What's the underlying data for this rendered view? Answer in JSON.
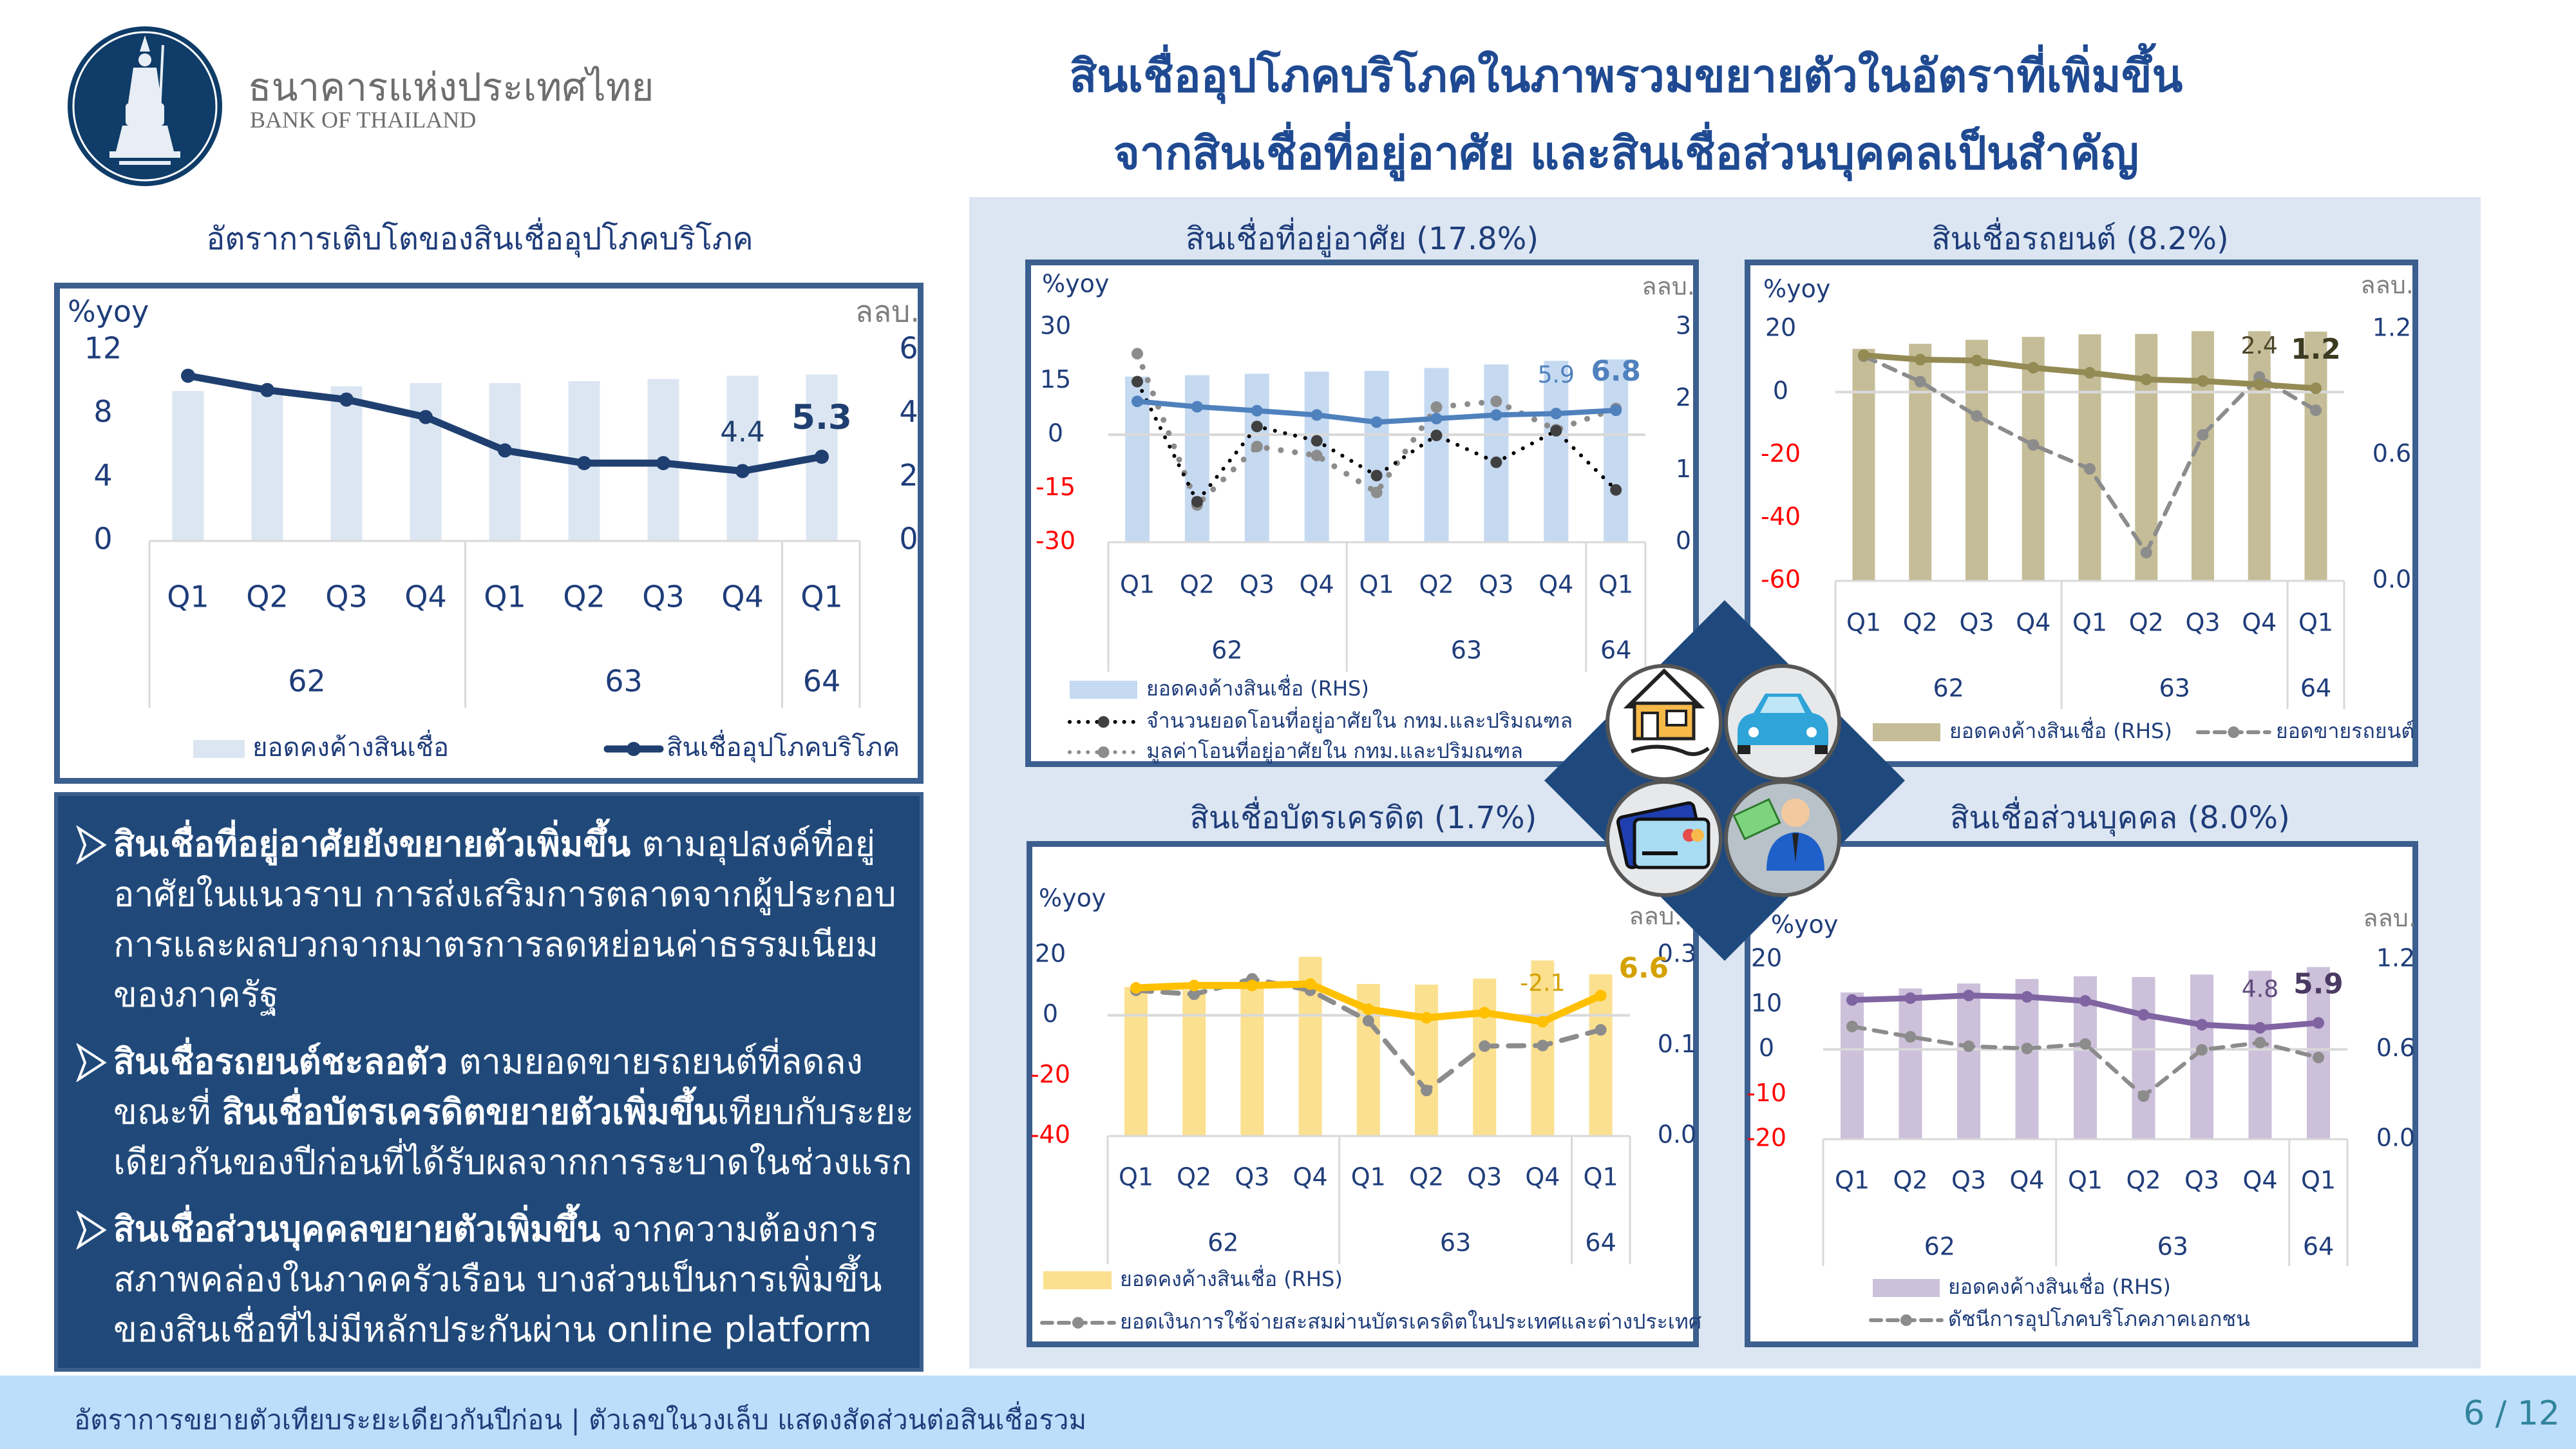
{
  "header": {
    "logo_text_th": "ธนาคารแห่งประเทศไทย",
    "logo_text_en": "BANK OF THAILAND",
    "title_line1": "สินเชื่ออุปโภคบริโภคในภาพรวมขยายตัวในอัตราที่เพิ่มขึ้น",
    "title_line2": "จากสินเชื่อที่อยู่อาศัย และสินเชื่อส่วนบุคคลเป็นสำคัญ"
  },
  "summary": {
    "bullets": [
      {
        "parts": [
          {
            "text": "สินเชื่อที่อยู่อาศัยยังขยายตัวเพิ่มขึ้น",
            "bold": true
          },
          {
            "text": " ตามอุปสงค์ที่อยู่อาศัยในแนวราบ การส่งเสริมการตลาดจากผู้ประกอบการและผลบวกจากมาตรการลดหย่อนค่าธรรมเนียมของภาครัฐ",
            "bold": false
          }
        ]
      },
      {
        "parts": [
          {
            "text": "สินเชื่อรถยนต์ชะลอตัว",
            "bold": true
          },
          {
            "text": " ตามยอดขายรถยนต์ที่ลดลง ขณะที่ ",
            "bold": false
          },
          {
            "text": "สินเชื่อบัตรเครดิตขยายตัวเพิ่มขึ้น",
            "bold": true
          },
          {
            "text": "เทียบกับระยะเดียวกันของปีก่อนที่ได้รับผลจากการระบาดในช่วงแรก",
            "bold": false
          }
        ]
      },
      {
        "parts": [
          {
            "text": "สินเชื่อส่วนบุคคลขยายตัวเพิ่มขึ้น",
            "bold": true
          },
          {
            "text": " จากความต้องการสภาพคล่องในภาคครัวเรือน บางส่วนเป็นการเพิ่มขึ้นของสินเชื่อที่ไม่มีหลักประกันผ่าน online platform",
            "bold": false
          }
        ]
      }
    ]
  },
  "center_icons": [
    "house-icon",
    "car-icon",
    "credit-card-icon",
    "money-person-icon"
  ],
  "colors": {
    "navy": "#1f497d",
    "panel_bg": "#dce6f2",
    "footer_bg": "#bddefb",
    "negative_tick": "#ff0000"
  },
  "footer": {
    "note": "อัตราการขยายตัวเทียบระยะเดียวกันปีก่อน | ตัวเลขในวงเล็บ แสดงสัดส่วนต่อสินเชื่อรวม",
    "page": "6 / 12"
  },
  "chart_data": [
    {
      "id": "main",
      "type": "bar+line",
      "title": "อัตราการเติบโตของสินเชื่ออุปโภคบริโภค",
      "left_unit": "%yoy",
      "right_unit": "ลลบ.",
      "categories": [
        "Q1",
        "Q2",
        "Q3",
        "Q4",
        "Q1",
        "Q2",
        "Q3",
        "Q4",
        "Q1"
      ],
      "groups": [
        {
          "label": "62",
          "span": 4
        },
        {
          "label": "63",
          "span": 4
        },
        {
          "label": "64",
          "span": 1
        }
      ],
      "ylim": [
        0,
        12
      ],
      "yticks": [
        0,
        4,
        8,
        12
      ],
      "ytick_labels": [
        "0",
        "4",
        "8",
        "12"
      ],
      "y2lim": [
        0,
        6
      ],
      "y2ticks": [
        0,
        2,
        4,
        6
      ],
      "y2tick_labels": [
        "0",
        "2",
        "4",
        "6"
      ],
      "zero_line": false,
      "bars": {
        "name": "ยอดคงค้างสินเชื่อ",
        "axis": "right",
        "color": "#dce6f2",
        "values": [
          4.72,
          4.8,
          4.87,
          4.97,
          4.97,
          5.03,
          5.1,
          5.2,
          5.24
        ]
      },
      "lines": [
        {
          "name": "สินเชื่ออุปโภคบริโภค",
          "axis": "left",
          "color": "#1f3f70",
          "style": "solid",
          "values": [
            10.4,
            9.5,
            8.9,
            7.8,
            5.7,
            4.9,
            4.9,
            4.4,
            5.3
          ],
          "labels": [
            {
              "index": 7,
              "text": "4.4",
              "bold": false,
              "position": "above"
            },
            {
              "index": 8,
              "text": "5.3",
              "bold": true,
              "position": "above"
            }
          ]
        }
      ],
      "legend": "bottom"
    },
    {
      "id": "house",
      "type": "bar+line",
      "title": "สินเชื่อที่อยู่อาศัย (17.8%)",
      "left_unit": "%yoy",
      "right_unit": "ลลบ.",
      "categories": [
        "Q1",
        "Q2",
        "Q3",
        "Q4",
        "Q1",
        "Q2",
        "Q3",
        "Q4",
        "Q1"
      ],
      "groups": [
        {
          "label": "62",
          "span": 4
        },
        {
          "label": "63",
          "span": 4
        },
        {
          "label": "64",
          "span": 1
        }
      ],
      "ylim": [
        -30,
        30
      ],
      "yticks": [
        -30,
        -15,
        0,
        15,
        30
      ],
      "ytick_labels": [
        "-30",
        "-15",
        "0",
        "15",
        "30"
      ],
      "y2lim": [
        0,
        3
      ],
      "y2ticks": [
        0,
        1,
        2,
        3
      ],
      "y2tick_labels": [
        "0",
        "1",
        "2",
        "3"
      ],
      "zero_line": true,
      "bars": {
        "name": "ยอดคงค้างสินเชื่อ (RHS)",
        "axis": "right",
        "color": "#c5d9f1",
        "values": [
          2.31,
          2.33,
          2.35,
          2.38,
          2.39,
          2.43,
          2.48,
          2.53,
          2.55
        ]
      },
      "lines": [
        {
          "name": "",
          "axis": "left",
          "color": "#4f81bd",
          "style": "solid",
          "values": [
            9.3,
            7.8,
            6.7,
            5.5,
            3.5,
            4.5,
            5.5,
            5.9,
            6.8
          ],
          "labels": [
            {
              "index": 7,
              "text": "5.9",
              "bold": false,
              "position": "above"
            },
            {
              "index": 8,
              "text": "6.8",
              "bold": true,
              "position": "above"
            }
          ]
        },
        {
          "name": "จำนวนยอดโอนที่อยู่อาศัยใน กทม.และปริมณฑล",
          "axis": "left",
          "color": "#000000",
          "style": "dotted",
          "values": [
            14.8,
            -18.7,
            2.3,
            -1.7,
            -11.4,
            -0.2,
            -7.7,
            1.1,
            -15.4
          ],
          "labels": []
        },
        {
          "name": "มูลค่าโอนที่อยู่อาศัยใน กทม.และปริมณฑล",
          "axis": "left",
          "color": "#8c8c8c",
          "style": "dotted-grey",
          "values": [
            22.6,
            -19.6,
            -3.3,
            -5.8,
            -16.1,
            7.7,
            9.3,
            1.4,
            7.3
          ],
          "labels": []
        }
      ],
      "legend": "bottom"
    },
    {
      "id": "auto",
      "type": "bar+line",
      "title": "สินเชื่อรถยนต์ (8.2%)",
      "left_unit": "%yoy",
      "right_unit": "ลลบ.",
      "categories": [
        "Q1",
        "Q2",
        "Q3",
        "Q4",
        "Q1",
        "Q2",
        "Q3",
        "Q4",
        "Q1"
      ],
      "groups": [
        {
          "label": "62",
          "span": 4
        },
        {
          "label": "63",
          "span": 4
        },
        {
          "label": "64",
          "span": 1
        }
      ],
      "ylim": [
        -60,
        20
      ],
      "yticks": [
        -60,
        -40,
        -20,
        0,
        20
      ],
      "ytick_labels": [
        "-60",
        "-40",
        "-20",
        "0",
        "20"
      ],
      "y2lim": [
        0,
        1.2
      ],
      "y2ticks": [
        0,
        0.6,
        1.2
      ],
      "y2tick_labels": [
        "0.0",
        "0.6",
        "1.2"
      ],
      "zero_line": true,
      "bars": {
        "name": "ยอดคงค้างสินเชื่อ (RHS)",
        "axis": "right",
        "color": "#c4bd97",
        "values": [
          1.106,
          1.13,
          1.149,
          1.163,
          1.175,
          1.177,
          1.19,
          1.19,
          1.188
        ]
      },
      "lines": [
        {
          "name": "",
          "axis": "left",
          "color": "#948a54",
          "style": "solid",
          "values": [
            11.7,
            10.3,
            10.0,
            7.7,
            6.1,
            4.0,
            3.5,
            2.4,
            1.2
          ],
          "labels": [
            {
              "index": 7,
              "text": "2.4",
              "bold": false,
              "position": "above",
              "color": "#4a452a"
            },
            {
              "index": 8,
              "text": "1.2",
              "bold": true,
              "position": "above",
              "color": "#3d3a22"
            }
          ]
        },
        {
          "name": "ยอดขายรถยนต์",
          "axis": "left",
          "color": "#8c8c8c",
          "style": "dashed",
          "values": [
            11.4,
            3.3,
            -7.6,
            -16.8,
            -24.4,
            -51.0,
            -13.6,
            4.8,
            -5.8
          ],
          "labels": []
        }
      ],
      "legend": "bottom"
    },
    {
      "id": "card",
      "type": "bar+line",
      "title": "สินเชื่อบัตรเครดิต (1.7%)",
      "left_unit": "%yoy",
      "right_unit": "ลลบ.",
      "categories": [
        "Q1",
        "Q2",
        "Q3",
        "Q4",
        "Q1",
        "Q2",
        "Q3",
        "Q4",
        "Q1"
      ],
      "groups": [
        {
          "label": "62",
          "span": 4
        },
        {
          "label": "63",
          "span": 4
        },
        {
          "label": "64",
          "span": 1
        }
      ],
      "ylim": [
        -40,
        20
      ],
      "yticks": [
        -40,
        -20,
        0,
        20
      ],
      "ytick_labels": [
        "-40",
        "-20",
        "0",
        "20"
      ],
      "y2lim": [
        0,
        0.3
      ],
      "y2ticks": [
        0,
        0.15,
        0.3
      ],
      "y2tick_labels": [
        "0.0",
        "0.1",
        "0.3"
      ],
      "zero_line": true,
      "bars": {
        "name": "ยอดคงค้างสินเชื่อ (RHS)",
        "axis": "right",
        "color": "#fbe08f",
        "values": [
          0.247,
          0.242,
          0.245,
          0.297,
          0.252,
          0.251,
          0.261,
          0.291,
          0.268
        ]
      },
      "lines": [
        {
          "name": "",
          "axis": "left",
          "color": "#ffc000",
          "style": "solid",
          "values": [
            9.1,
            9.9,
            9.9,
            10.4,
            2.0,
            -0.8,
            0.9,
            -2.1,
            6.6
          ],
          "labels": [
            {
              "index": 7,
              "text": "-2.1",
              "bold": false,
              "position": "above",
              "color": "#d4a100"
            },
            {
              "index": 8,
              "text": "6.6",
              "bold": true,
              "position": "right",
              "color": "#d4a100"
            }
          ]
        },
        {
          "name": "ยอดเงินการใช้จ่ายสะสมผ่านบัตรเครดิตในประเทศและต่างประเทศ",
          "axis": "left",
          "color": "#8c8c8c",
          "style": "dashed",
          "values": [
            8.3,
            7.0,
            12.1,
            8.3,
            -1.8,
            -24.9,
            -10.2,
            -10.0,
            -4.8
          ],
          "labels": []
        }
      ],
      "legend": "bottom"
    },
    {
      "id": "pers",
      "type": "bar+line",
      "title": "สินเชื่อส่วนบุคคล (8.0%)",
      "left_unit": "%yoy",
      "right_unit": "ลลบ.",
      "categories": [
        "Q1",
        "Q2",
        "Q3",
        "Q4",
        "Q1",
        "Q2",
        "Q3",
        "Q4",
        "Q1"
      ],
      "groups": [
        {
          "label": "62",
          "span": 4
        },
        {
          "label": "63",
          "span": 4
        },
        {
          "label": "64",
          "span": 1
        }
      ],
      "ylim": [
        -20,
        20
      ],
      "yticks": [
        -20,
        -10,
        0,
        10,
        20
      ],
      "ytick_labels": [
        "-20",
        "-10",
        "0",
        "10",
        "20"
      ],
      "y2lim": [
        0,
        1.2
      ],
      "y2ticks": [
        0,
        0.6,
        1.2
      ],
      "y2tick_labels": [
        "0.0",
        "0.6",
        "1.2"
      ],
      "zero_line": true,
      "bars": {
        "name": "ยอดคงค้างสินเชื่อ (RHS)",
        "axis": "right",
        "color": "#ccc0da",
        "values": [
          0.98,
          1.007,
          1.04,
          1.07,
          1.088,
          1.083,
          1.1,
          1.125,
          1.15
        ]
      },
      "lines": [
        {
          "name": "",
          "axis": "left",
          "color": "#8064a2",
          "style": "solid",
          "values": [
            11.0,
            11.4,
            12.0,
            11.7,
            10.8,
            7.7,
            5.5,
            4.8,
            5.9
          ],
          "labels": [
            {
              "index": 7,
              "text": "4.8",
              "bold": false,
              "position": "above",
              "color": "#604a7b"
            },
            {
              "index": 8,
              "text": "5.9",
              "bold": true,
              "position": "above",
              "color": "#4b3a63"
            }
          ]
        },
        {
          "name": "ดัชนีการอุปโภคบริโภคภาคเอกชน",
          "axis": "left",
          "color": "#8c8c8c",
          "style": "dashed",
          "values": [
            5.1,
            2.8,
            0.7,
            0.2,
            1.2,
            -10.4,
            -0.1,
            1.5,
            -1.8
          ],
          "labels": []
        }
      ],
      "legend": "bottom"
    }
  ]
}
